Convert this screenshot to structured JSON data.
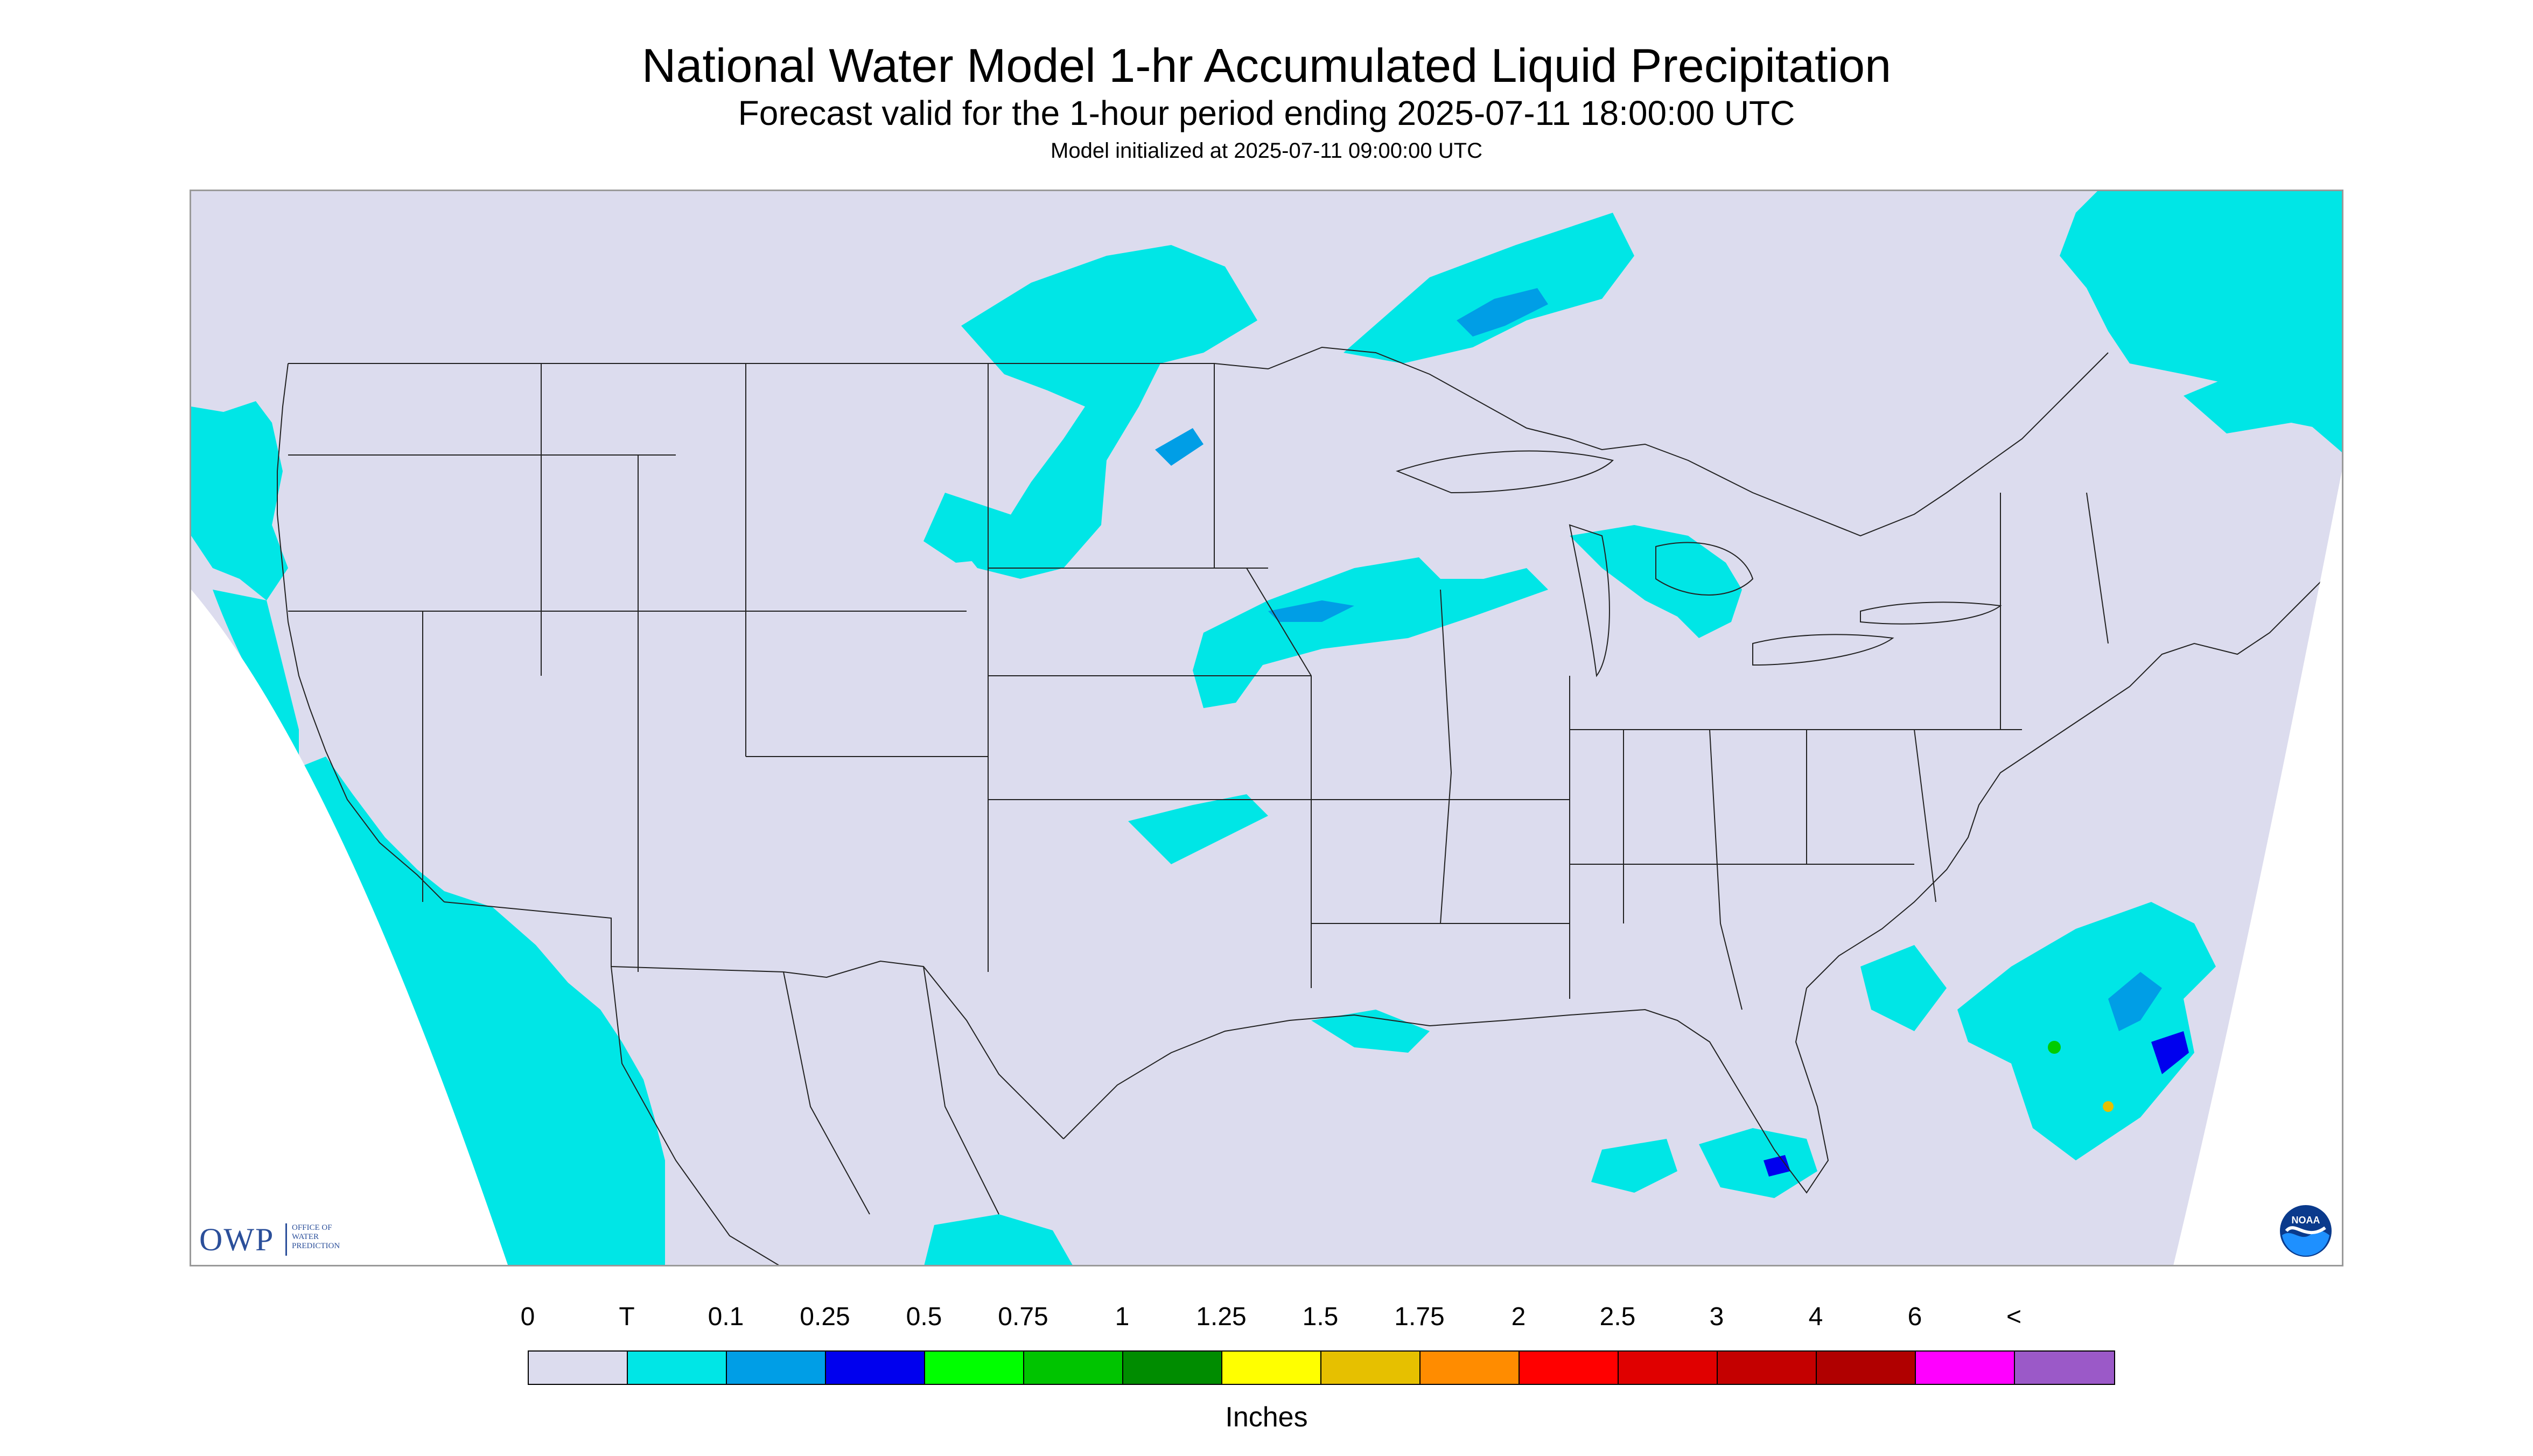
{
  "header": {
    "title": "National Water Model 1-hr Accumulated Liquid Precipitation",
    "subtitle": "Forecast valid for the 1-hour period ending 2025-07-11 18:00:00 UTC",
    "init": "Model initialized at 2025-07-11 09:00:00 UTC"
  },
  "map": {
    "background_color": "#dcdcee",
    "light_precip_color": "#00e6e6",
    "medium_precip_color": "#009ee6",
    "heavy_precip_color": "#0000ee",
    "green_precip_color": "#00cc00",
    "yellow_precip_color": "#e6c000",
    "boundary_color": "#222222"
  },
  "logos": {
    "owp_letters": "OWP",
    "owp_line1": "OFFICE OF",
    "owp_line2": "WATER",
    "owp_line3": "PREDICTION",
    "noaa_label": "NOAA"
  },
  "legend": {
    "labels": [
      "0",
      "T",
      "0.1",
      "0.25",
      "0.5",
      "0.75",
      "1",
      "1.25",
      "1.5",
      "1.75",
      "2",
      "2.5",
      "3",
      "4",
      "6",
      "<"
    ],
    "colors": [
      "#dcdcee",
      "#00e6e6",
      "#009ee6",
      "#0000ee",
      "#00ff00",
      "#00c400",
      "#008c00",
      "#ffff00",
      "#e6c000",
      "#ff8c00",
      "#ff0000",
      "#e00000",
      "#c40000",
      "#b00000",
      "#ff00ff",
      "#9b59c8"
    ],
    "units": "Inches"
  }
}
